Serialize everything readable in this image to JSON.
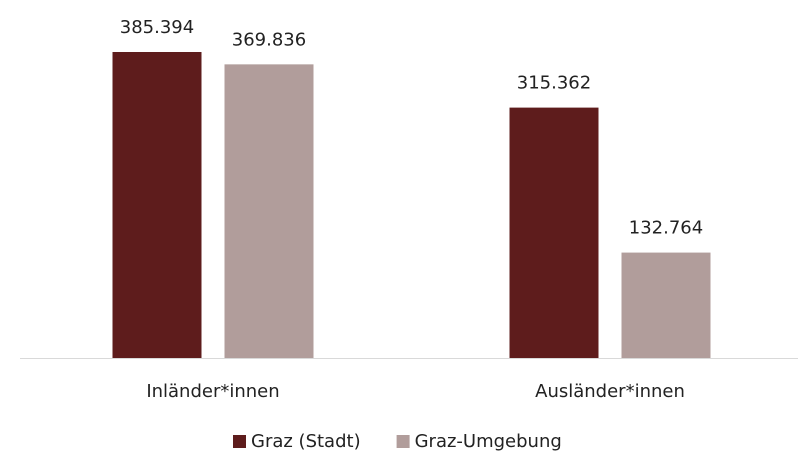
{
  "chart_data": {
    "type": "bar",
    "categories": [
      "Inländer*innen",
      "Ausländer*innen"
    ],
    "series": [
      {
        "name": "Graz (Stadt)",
        "color": "#5e1c1c",
        "values": [
          385394,
          315362
        ],
        "value_labels": [
          "385.394",
          "315.362"
        ]
      },
      {
        "name": "Graz-Umgebung",
        "color": "#b19d9b",
        "values": [
          369836,
          132764
        ],
        "value_labels": [
          "369.836",
          "132.764"
        ]
      }
    ],
    "legend": "bottom"
  }
}
